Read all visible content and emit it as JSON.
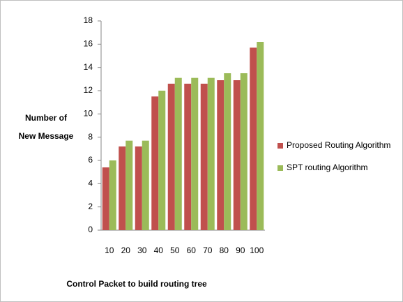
{
  "chart_data": {
    "type": "bar",
    "x_label": "Control  Packet to build routing tree",
    "y_label": [
      "Number of",
      "New Message"
    ],
    "categories": [
      "10",
      "20",
      "30",
      "40",
      "50",
      "60",
      "70",
      "80",
      "90",
      "100"
    ],
    "series": [
      {
        "name": "Proposed Routing Algorithm",
        "color": "#c0504d",
        "values": [
          5.4,
          7.2,
          7.2,
          11.5,
          12.6,
          12.6,
          12.6,
          12.9,
          12.9,
          15.7
        ]
      },
      {
        "name": "SPT routing Algorithm",
        "color": "#9bbb59",
        "values": [
          6,
          7.7,
          7.7,
          12,
          13.1,
          13.1,
          13.1,
          13.5,
          13.5,
          16.2
        ]
      }
    ],
    "ylim": [
      0,
      18
    ],
    "yticks": [
      0,
      2,
      4,
      6,
      8,
      10,
      12,
      14,
      16,
      18
    ],
    "grid": false,
    "legend": "right"
  }
}
